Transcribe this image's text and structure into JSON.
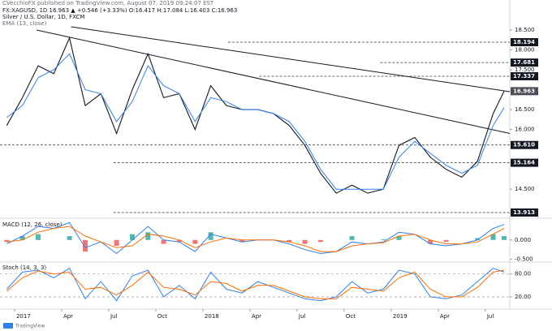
{
  "header": {
    "publisher": "CVecchioFX published on TradingView.com, August 07, 2019 09:24:07 EST",
    "symbol_line": "FX:XAGUSD, 1D 16.963 ▲ +0.546 (+3.33%) O:16.417 H:17.084 L:16.403 C:16.963"
  },
  "chart_data": [
    {
      "type": "line",
      "title": "Silver / U.S. Dollar, 1D, FXCM",
      "x": [
        -0.5,
        0.5,
        1.5,
        2.5,
        3.5,
        4.5,
        5.5,
        6.5,
        7.5,
        8.5,
        9.5,
        10.5,
        11.5,
        12.5,
        13.5,
        14.5,
        15.5,
        16.5,
        17.5,
        18.5,
        19.5,
        20.5,
        21.5,
        22.5,
        23.5,
        24.5,
        25.5,
        26.5,
        27.5,
        28.5,
        29.5,
        30.5,
        31.2
      ],
      "xlim": [
        -0.93,
        31.56
      ],
      "ylim": [
        13.79,
        19.05
      ],
      "yticks": [
        {
          "value": 18.5,
          "label": "18.500"
        },
        {
          "value": 18,
          "label": "18.000"
        },
        {
          "value": 17.5,
          "label": "17.500"
        },
        {
          "value": 16.5,
          "label": "16.500"
        },
        {
          "value": 16,
          "label": "16.000"
        },
        {
          "value": 14.5,
          "label": "14.500"
        }
      ],
      "series": [
        {
          "color": "#131722",
          "values": [
            16.1,
            16.8,
            17.6,
            17.4,
            18.3,
            16.6,
            16.9,
            15.9,
            17.0,
            17.9,
            16.8,
            16.9,
            16.0,
            17.1,
            16.6,
            16.5,
            16.5,
            16.4,
            16.1,
            15.6,
            14.9,
            14.4,
            14.6,
            14.4,
            14.5,
            15.6,
            15.8,
            15.3,
            15.0,
            14.8,
            15.2,
            16.4,
            16.963
          ]
        },
        {
          "name": "EMA (13, close)",
          "color": "#2f80ed",
          "values": [
            16.3,
            16.6,
            17.3,
            17.5,
            17.9,
            17.0,
            16.9,
            16.2,
            16.7,
            17.6,
            17.1,
            16.9,
            16.2,
            16.8,
            16.7,
            16.5,
            16.5,
            16.4,
            16.2,
            15.7,
            15.0,
            14.5,
            14.5,
            14.5,
            14.5,
            15.3,
            15.7,
            15.4,
            15.1,
            14.9,
            15.1,
            16.1,
            16.55
          ]
        }
      ],
      "levels": [
        {
          "value": 18.194,
          "label": "18.194",
          "from": 13.6
        },
        {
          "value": 17.681,
          "label": "17.681",
          "from": 23.3
        },
        {
          "value": 17.337,
          "label": "17.337",
          "from": 15.6
        },
        {
          "value": 15.61,
          "label": "15.610",
          "from": -0.93
        },
        {
          "value": 15.164,
          "label": "15.164",
          "from": 6.3
        },
        {
          "value": 13.913,
          "label": "13.913",
          "from": 6.3
        }
      ],
      "trendlines": [
        {
          "x": [
            3.6,
            31.56
          ],
          "y": [
            18.58,
            16.95
          ]
        },
        {
          "x": [
            1.4,
            31.56
          ],
          "y": [
            18.5,
            15.9
          ]
        }
      ],
      "last": {
        "value": 16.963,
        "label": "16.963"
      }
    },
    {
      "type": "line",
      "title": "MACD (12, 26, close)",
      "x": [
        -0.5,
        0.5,
        1.5,
        2.5,
        3.5,
        4.5,
        5.5,
        6.5,
        7.5,
        8.5,
        9.5,
        10.5,
        11.5,
        12.5,
        13.5,
        14.5,
        15.5,
        16.5,
        17.5,
        18.5,
        19.5,
        20.5,
        21.5,
        22.5,
        23.5,
        24.5,
        25.5,
        26.5,
        27.5,
        28.5,
        29.5,
        30.5,
        31.2
      ],
      "xlim": [
        -0.93,
        31.56
      ],
      "ylim": [
        -0.55,
        0.5
      ],
      "yticks": [
        {
          "value": 0,
          "label": "0.000"
        },
        {
          "value": -0.5,
          "label": "-0.500"
        }
      ],
      "series": [
        {
          "style": "histogram",
          "colors": [
            "#26a69a",
            "#ef5350"
          ],
          "values": [
            -0.05,
            0.1,
            0.15,
            0.0,
            0.1,
            -0.3,
            0.0,
            -0.15,
            0.15,
            0.2,
            -0.1,
            -0.05,
            -0.1,
            0.2,
            0.0,
            -0.05,
            0,
            0,
            -0.05,
            -0.1,
            -0.05,
            0,
            0.1,
            0,
            0.02,
            0.1,
            0,
            -0.1,
            -0.05,
            0,
            0.05,
            0.15,
            0.1
          ]
        },
        {
          "color": "#2f80ed",
          "values": [
            -0.1,
            0.1,
            0.35,
            0.3,
            0.45,
            -0.2,
            -0.05,
            -0.35,
            0.0,
            0.35,
            0.0,
            -0.05,
            -0.3,
            0.15,
            0.05,
            -0.05,
            0.0,
            0.0,
            -0.1,
            -0.25,
            -0.35,
            -0.3,
            -0.05,
            -0.1,
            -0.05,
            0.2,
            0.15,
            -0.1,
            -0.15,
            -0.1,
            0.0,
            0.3,
            0.4
          ]
        },
        {
          "color": "#ff6d00",
          "values": [
            -0.05,
            0.0,
            0.2,
            0.3,
            0.35,
            0.1,
            -0.05,
            -0.2,
            -0.15,
            0.15,
            0.1,
            0.0,
            -0.2,
            -0.05,
            0.05,
            0.0,
            0.0,
            0.0,
            -0.05,
            -0.15,
            -0.3,
            -0.3,
            -0.15,
            -0.1,
            -0.07,
            0.1,
            0.15,
            0.0,
            -0.1,
            -0.1,
            -0.05,
            0.15,
            0.3
          ]
        }
      ]
    },
    {
      "type": "line",
      "title": "Stoch (14, 3, 3)",
      "x": [
        -0.5,
        0.5,
        1.5,
        2.5,
        3.5,
        4.5,
        5.5,
        6.5,
        7.5,
        8.5,
        9.5,
        10.5,
        11.5,
        12.5,
        13.5,
        14.5,
        15.5,
        16.5,
        17.5,
        18.5,
        19.5,
        20.5,
        21.5,
        22.5,
        23.5,
        24.5,
        25.5,
        26.5,
        27.5,
        28.5,
        29.5,
        30.5,
        31.2
      ],
      "xlim": [
        -0.93,
        31.56
      ],
      "ylim": [
        -10,
        105
      ],
      "yticks": [
        {
          "value": 80,
          "label": "80.00"
        },
        {
          "value": 20,
          "label": "20.00"
        }
      ],
      "xticks": [
        {
          "value": 0,
          "label": "2017"
        },
        {
          "value": 3,
          "label": "Apr"
        },
        {
          "value": 6,
          "label": "Jul"
        },
        {
          "value": 9,
          "label": "Oct"
        },
        {
          "value": 12,
          "label": "2018"
        },
        {
          "value": 15,
          "label": "Apr"
        },
        {
          "value": 18,
          "label": "Jul"
        },
        {
          "value": 21,
          "label": "Oct"
        },
        {
          "value": 24,
          "label": "2019"
        },
        {
          "value": 27,
          "label": "Apr"
        },
        {
          "value": 30,
          "label": "Jul"
        }
      ],
      "series": [
        {
          "color": "#2f80ed",
          "values": [
            40,
            85,
            90,
            70,
            95,
            15,
            60,
            10,
            75,
            90,
            20,
            50,
            15,
            85,
            40,
            30,
            60,
            45,
            30,
            15,
            10,
            20,
            60,
            30,
            40,
            90,
            80,
            20,
            15,
            25,
            60,
            95,
            85
          ]
        },
        {
          "color": "#ff6d00",
          "values": [
            35,
            70,
            88,
            80,
            85,
            40,
            45,
            25,
            50,
            85,
            45,
            40,
            25,
            60,
            55,
            35,
            50,
            50,
            35,
            20,
            15,
            15,
            45,
            40,
            35,
            70,
            85,
            40,
            20,
            20,
            45,
            85,
            90
          ]
        }
      ]
    }
  ],
  "footer": {
    "brand": "TradingView"
  }
}
